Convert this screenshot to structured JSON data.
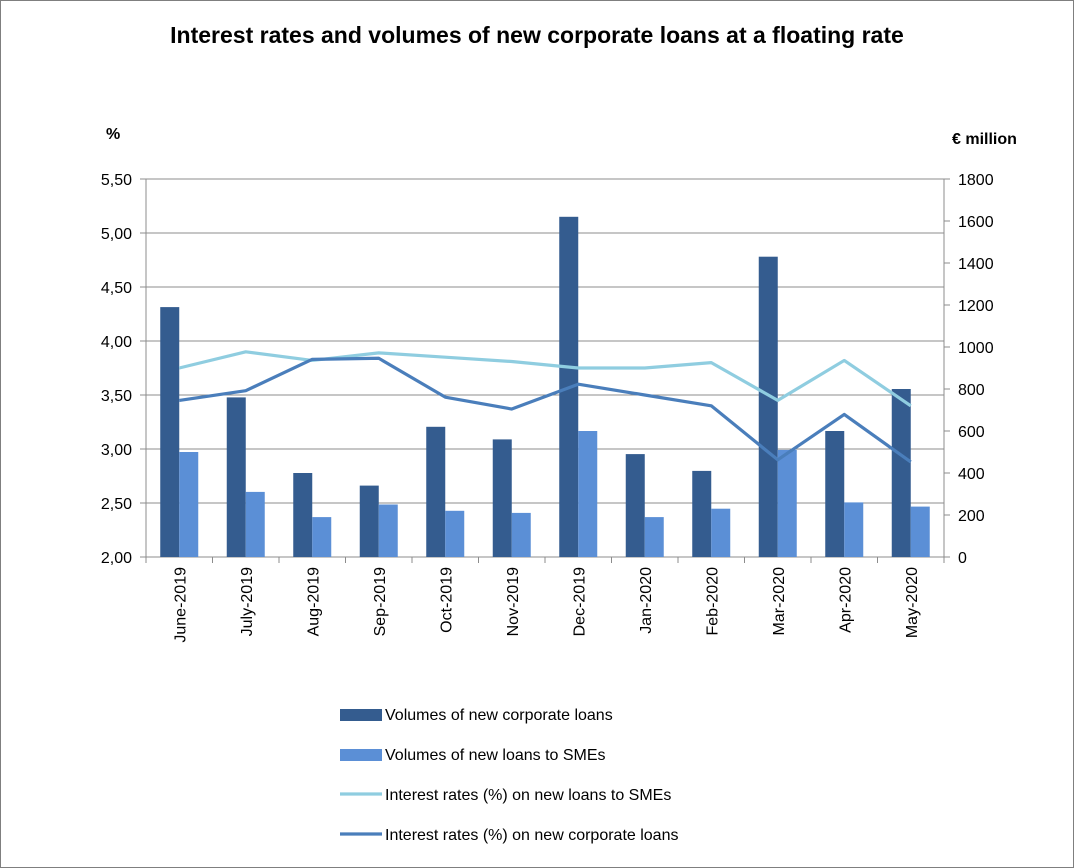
{
  "chart_data": {
    "type": "bar",
    "title": "Interest rates and volumes of new corporate loans at a floating rate",
    "ylabel_left": "%",
    "ylabel_right": "€ million",
    "categories": [
      "June-2019",
      "July-2019",
      "Aug-2019",
      "Sep-2019",
      "Oct-2019",
      "Nov-2019",
      "Dec-2019",
      "Jan-2020",
      "Feb-2020",
      "Mar-2020",
      "Apr-2020",
      "May-2020"
    ],
    "y_left": {
      "min": 2.0,
      "max": 5.5,
      "ticks": [
        "2,00",
        "2,50",
        "3,00",
        "3,50",
        "4,00",
        "4,50",
        "5,00",
        "5,50"
      ]
    },
    "y_right": {
      "min": 0,
      "max": 1800,
      "ticks": [
        "0",
        "200",
        "400",
        "600",
        "800",
        "1000",
        "1200",
        "1400",
        "1600",
        "1800"
      ]
    },
    "grid": true,
    "legend_position": "bottom",
    "series": [
      {
        "name": "Volumes of new corporate loans",
        "kind": "bar",
        "axis": "right",
        "color": "#345c8f",
        "values": [
          1190,
          760,
          400,
          340,
          620,
          560,
          1620,
          490,
          410,
          1430,
          600,
          800
        ]
      },
      {
        "name": "Volumes of new loans to SMEs",
        "kind": "bar",
        "axis": "right",
        "color": "#5b8fd6",
        "values": [
          500,
          310,
          190,
          250,
          220,
          210,
          600,
          190,
          230,
          510,
          260,
          240
        ]
      },
      {
        "name": "Interest rates (%) on new loans to SMEs",
        "kind": "line",
        "axis": "left",
        "color": "#8fcde0",
        "values": [
          3.75,
          3.9,
          3.82,
          3.89,
          3.85,
          3.81,
          3.75,
          3.75,
          3.8,
          3.45,
          3.82,
          3.4
        ]
      },
      {
        "name": "Interest rates (%) on new corporate loans",
        "kind": "line",
        "axis": "left",
        "color": "#4a7ebb",
        "values": [
          3.45,
          3.54,
          3.83,
          3.84,
          3.48,
          3.37,
          3.6,
          3.5,
          3.4,
          2.9,
          3.32,
          2.88
        ]
      }
    ]
  }
}
